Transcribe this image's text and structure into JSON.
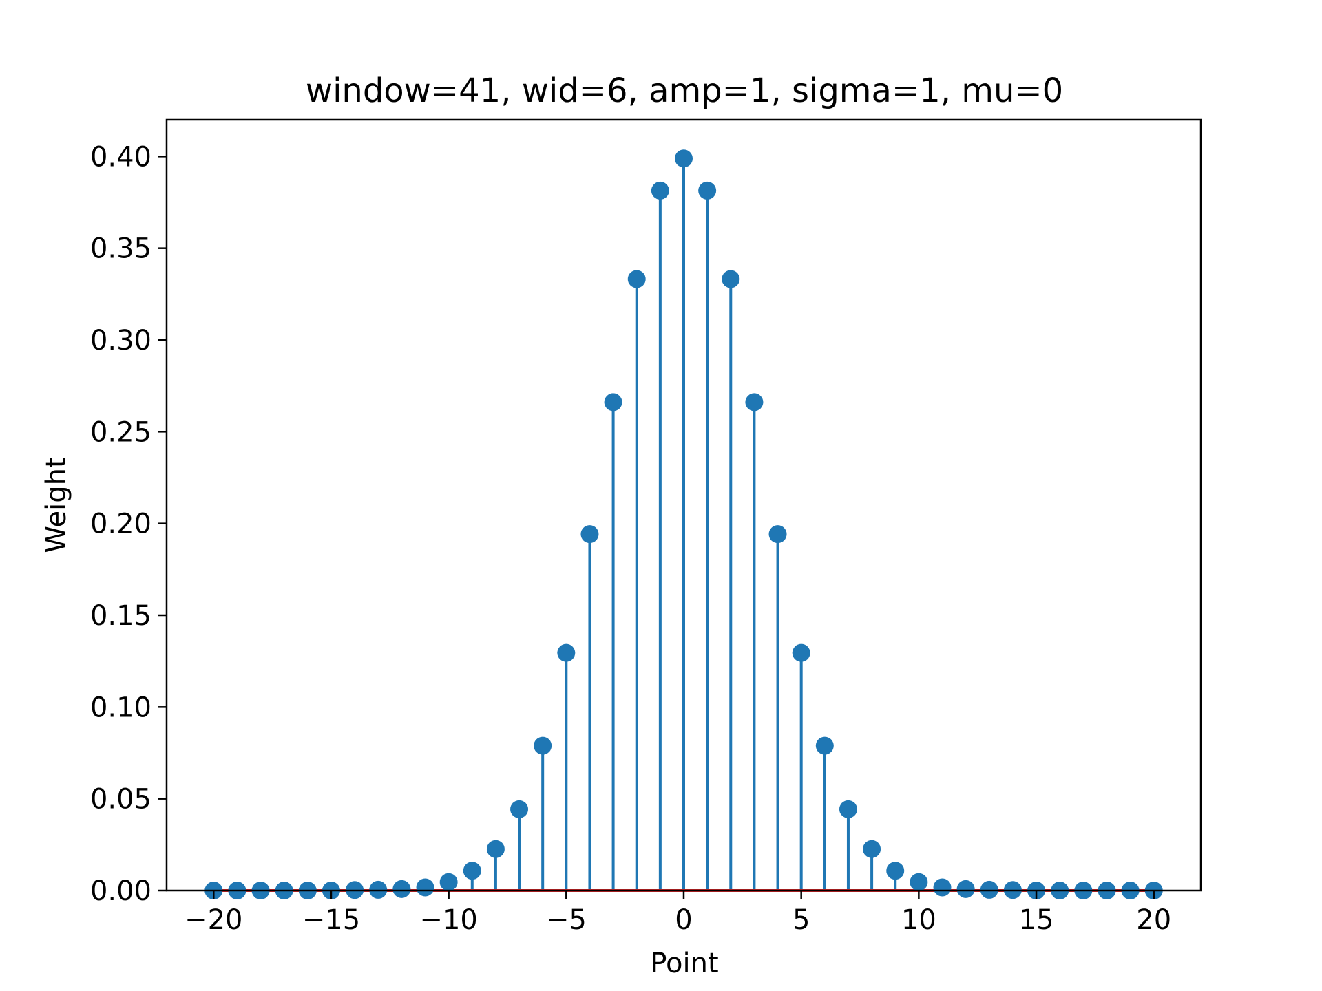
{
  "chart_data": {
    "type": "stem",
    "title": "window=41, wid=6, amp=1, sigma=1, mu=0",
    "xlabel": "Point",
    "ylabel": "Weight",
    "xlim": [
      -22,
      22
    ],
    "ylim": [
      0,
      0.42
    ],
    "xticks": [
      -20,
      -15,
      -10,
      -5,
      0,
      5,
      10,
      15,
      20
    ],
    "xtick_labels": [
      "−20",
      "−15",
      "−10",
      "−5",
      "0",
      "5",
      "10",
      "15",
      "20"
    ],
    "yticks": [
      0,
      0.05,
      0.1,
      0.15,
      0.2,
      0.25,
      0.3,
      0.35,
      0.4
    ],
    "ytick_labels": [
      "0.00",
      "0.05",
      "0.10",
      "0.15",
      "0.20",
      "0.25",
      "0.30",
      "0.35",
      "0.40"
    ],
    "grid": false,
    "colors": {
      "stem": "#1f77b4",
      "baseline": "#d62728"
    },
    "x": [
      -20,
      -19,
      -18,
      -17,
      -16,
      -15,
      -14,
      -13,
      -12,
      -11,
      -10,
      -9,
      -8,
      -7,
      -6,
      -5,
      -4,
      -3,
      -2,
      -1,
      0,
      1,
      2,
      3,
      4,
      5,
      6,
      7,
      8,
      9,
      10,
      11,
      12,
      13,
      14,
      15,
      16,
      17,
      18,
      19,
      20
    ],
    "y": [
      0.0,
      0.0,
      0.0,
      0.0,
      0.0,
      0.0,
      0.0003,
      0.0004,
      0.0008,
      0.0017,
      0.0046,
      0.0108,
      0.0226,
      0.0443,
      0.0789,
      0.1295,
      0.1942,
      0.2661,
      0.3332,
      0.3814,
      0.3989,
      0.3814,
      0.3332,
      0.2661,
      0.1942,
      0.1295,
      0.0789,
      0.0443,
      0.0226,
      0.0108,
      0.0046,
      0.0017,
      0.0008,
      0.0004,
      0.0003,
      0.0,
      0.0,
      0.0,
      0.0,
      0.0,
      0.0
    ]
  }
}
